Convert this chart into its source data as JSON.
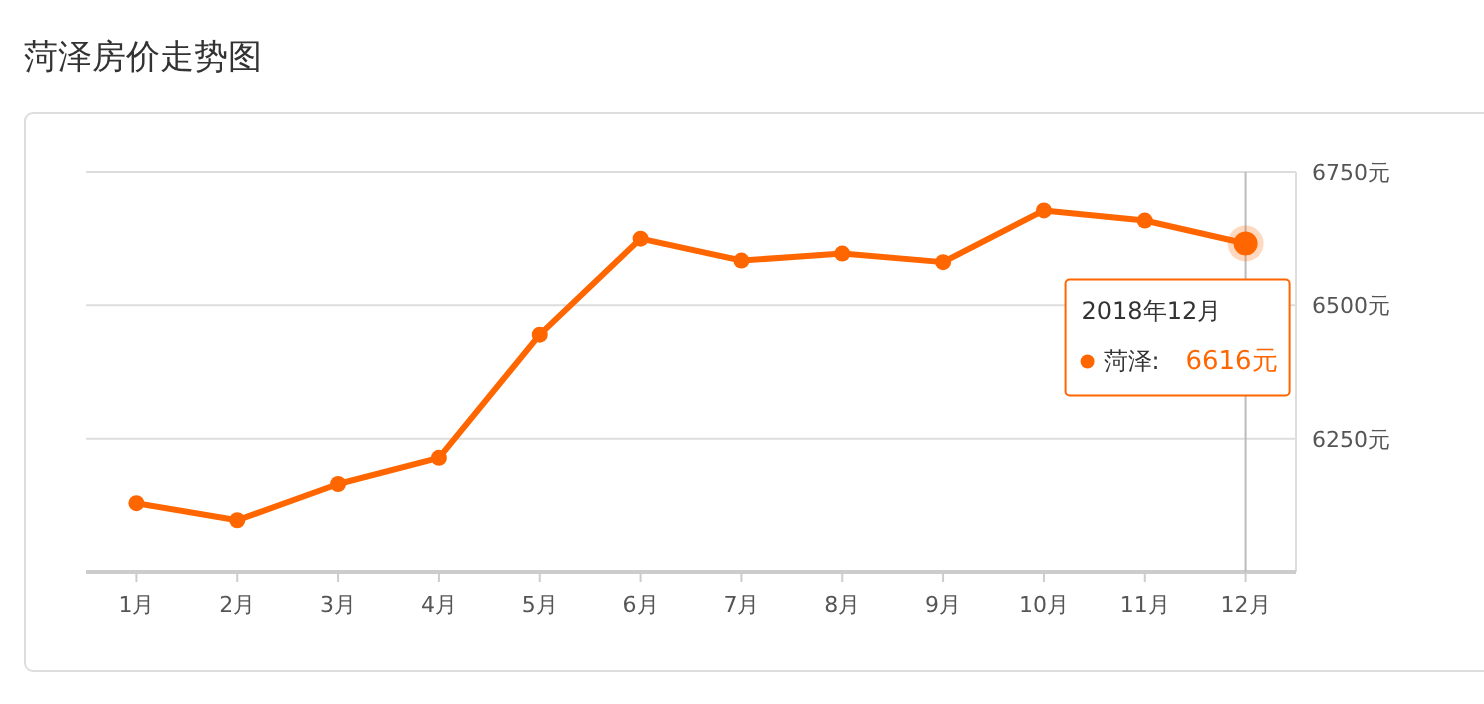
{
  "chart_data": {
    "type": "line",
    "title": "菏泽房价走势图",
    "categories": [
      "1月",
      "2月",
      "3月",
      "4月",
      "5月",
      "6月",
      "7月",
      "8月",
      "9月",
      "10月",
      "11月",
      "12月"
    ],
    "series": [
      {
        "name": "菏泽:",
        "color": "#ff6600",
        "values": [
          6129,
          6097,
          6165,
          6214,
          6445,
          6625,
          6584,
          6597,
          6581,
          6678,
          6659,
          6616
        ]
      }
    ],
    "ylim": [
      6000,
      6750
    ],
    "yticks": [
      {
        "value": 6000,
        "label": null
      },
      {
        "value": 6250,
        "label": "6250元"
      },
      {
        "value": 6500,
        "label": "6500元"
      },
      {
        "value": 6750,
        "label": "6750元"
      }
    ],
    "grid": "y",
    "marker": "circle",
    "line_style": "solid",
    "legend": "right",
    "annotations": [
      {
        "text": "2018年12月",
        "x": "12月",
        "y": 6616
      },
      "6616元"
    ],
    "ref_lines": [
      {
        "axis": "x",
        "value": "12月",
        "color": "#bbbbbb"
      }
    ]
  }
}
